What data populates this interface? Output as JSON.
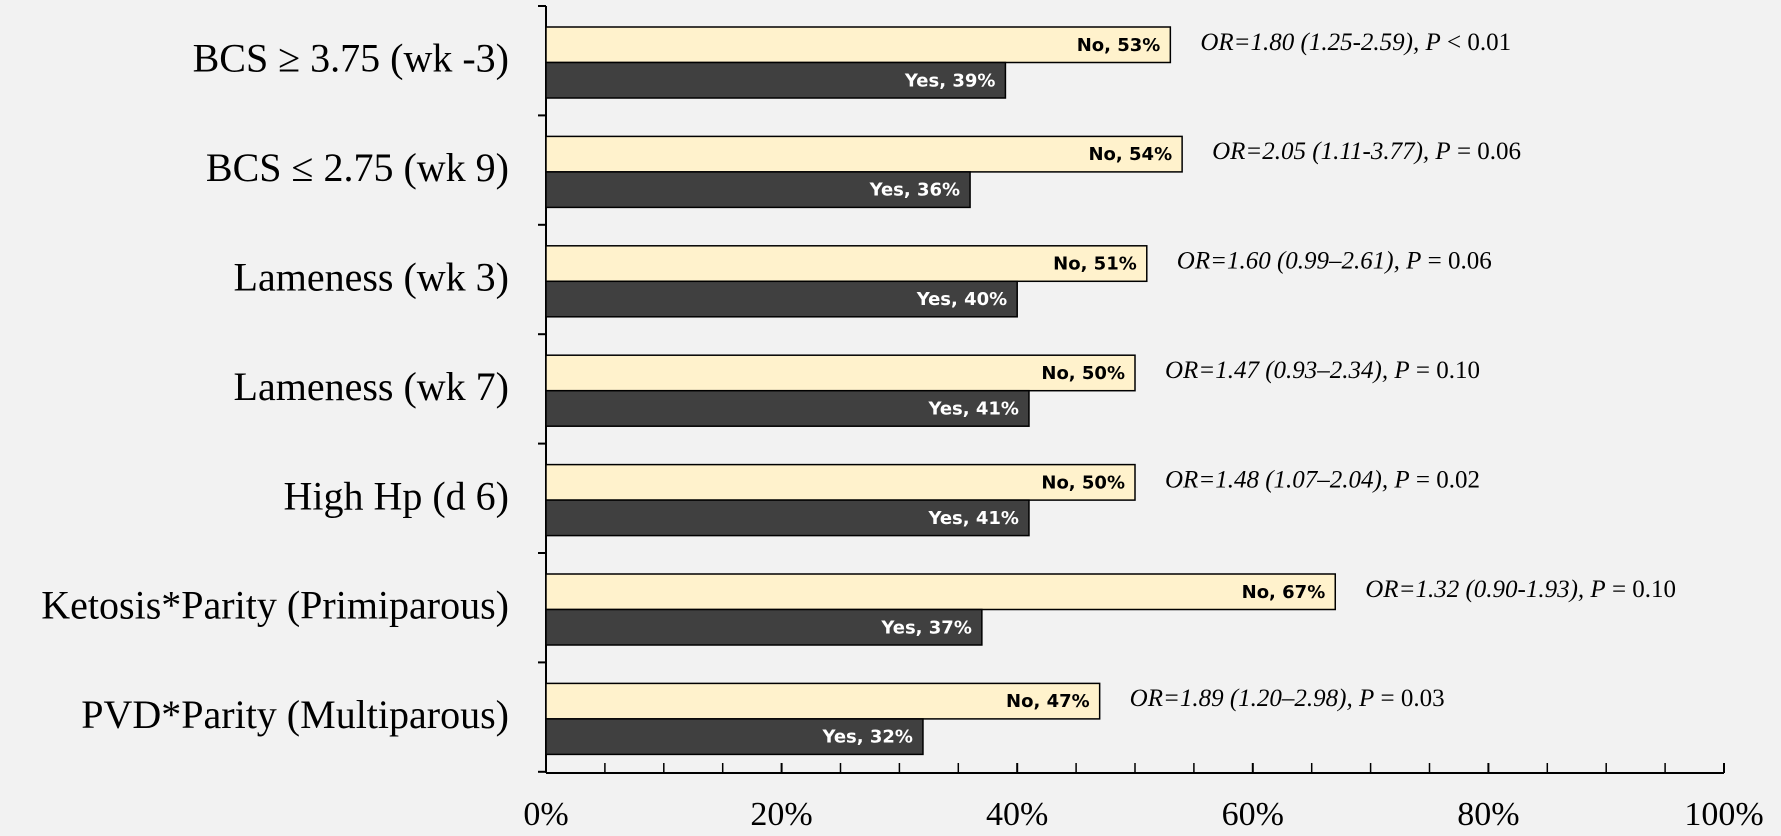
{
  "chart_data": {
    "type": "hbar",
    "categories": [
      "BCS ≥ 3.75 (wk -3)",
      "BCS ≤ 2.75 (wk 9)",
      "Lameness (wk 3)",
      "Lameness (wk 7)",
      "High Hp (d 6)",
      "Ketosis*Parity (Primiparous)",
      "PVD*Parity (Multiparous)"
    ],
    "series": [
      {
        "name": "No",
        "color": "#fff2cc",
        "label_color": "#000000",
        "values": [
          53,
          54,
          51,
          50,
          50,
          67,
          47
        ],
        "value_labels": [
          "No, 53%",
          "No, 54%",
          "No, 51%",
          "No, 50%",
          "No, 50%",
          "No, 67%",
          "No, 47%"
        ]
      },
      {
        "name": "Yes",
        "color": "#404040",
        "label_color": "#ffffff",
        "values": [
          39,
          36,
          40,
          41,
          41,
          37,
          32
        ],
        "value_labels": [
          "Yes, 39%",
          "Yes, 36%",
          "Yes, 40%",
          "Yes, 41%",
          "Yes, 41%",
          "Yes, 37%",
          "Yes, 32%"
        ]
      }
    ],
    "annotations": [
      {
        "italic": "OR=1.80 (1.25-2.59), P",
        "plain": " < 0.01"
      },
      {
        "italic": "OR=2.05 (1.11-3.77), P",
        "plain": " = 0.06"
      },
      {
        "italic": "OR=1.60 (0.99–2.61), P",
        "plain": " = 0.06"
      },
      {
        "italic": "OR=1.47 (0.93–2.34), P",
        "plain": " = 0.10"
      },
      {
        "italic": "OR=1.48 (1.07–2.04), P",
        "plain": " = 0.02"
      },
      {
        "italic": "OR=1.32 (0.90-1.93), P",
        "plain": " = 0.10"
      },
      {
        "italic": "OR=1.89 (1.20–2.98), P",
        "plain": " = 0.03"
      }
    ],
    "xlim": [
      0,
      100
    ],
    "xticks": [
      {
        "value": 0,
        "label": "0%"
      },
      {
        "value": 20,
        "label": "20%"
      },
      {
        "value": 40,
        "label": "40%"
      },
      {
        "value": 60,
        "label": "60%"
      },
      {
        "value": 80,
        "label": "80%"
      },
      {
        "value": 100,
        "label": "100%"
      }
    ],
    "xminor_ticks": [
      5,
      10,
      15,
      25,
      30,
      35,
      45,
      50,
      55,
      65,
      70,
      75,
      85,
      90,
      95
    ]
  }
}
